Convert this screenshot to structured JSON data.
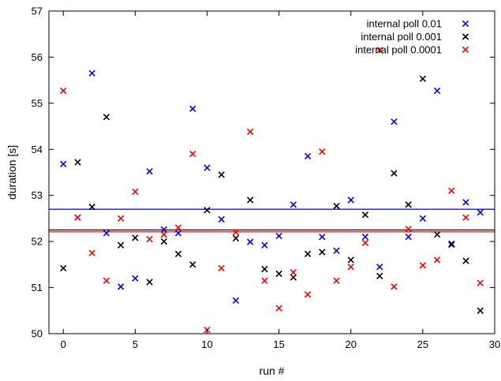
{
  "chart_data": {
    "type": "scatter",
    "title": "",
    "xlabel": "run #",
    "ylabel": "duration [s]",
    "xlim": [
      -1,
      30
    ],
    "ylim": [
      50,
      57
    ],
    "xticks": [
      0,
      5,
      10,
      15,
      20,
      25,
      30
    ],
    "yticks": [
      50,
      51,
      52,
      53,
      54,
      55,
      56,
      57
    ],
    "grid": false,
    "legend_position": "top-right",
    "series": [
      {
        "name": "internal poll 0.01",
        "color": "#0000ff",
        "marker": "x",
        "mean": 52.7,
        "x": [
          0,
          1,
          2,
          3,
          4,
          5,
          6,
          7,
          8,
          9,
          10,
          11,
          12,
          13,
          14,
          15,
          16,
          17,
          18,
          19,
          20,
          21,
          22,
          23,
          24,
          25,
          26,
          27,
          28,
          29
        ],
        "y": [
          53.68,
          52.52,
          55.65,
          52.18,
          51.02,
          51.2,
          53.52,
          52.26,
          52.18,
          54.88,
          53.6,
          52.48,
          50.72,
          51.99,
          51.92,
          52.12,
          52.8,
          53.85,
          52.1,
          51.8,
          52.9,
          52.1,
          51.45,
          54.6,
          52.1,
          52.5,
          55.27,
          51.93,
          52.85,
          52.63
        ]
      },
      {
        "name": "internal poll 0.001",
        "color": "#000000",
        "marker": "x",
        "mean": 52.25,
        "x": [
          0,
          1,
          2,
          3,
          4,
          5,
          6,
          7,
          8,
          9,
          10,
          11,
          12,
          13,
          14,
          15,
          16,
          17,
          18,
          19,
          20,
          21,
          22,
          23,
          24,
          25,
          26,
          27,
          28,
          29
        ],
        "y": [
          51.42,
          53.72,
          52.75,
          54.7,
          51.92,
          52.08,
          51.12,
          52.0,
          51.73,
          51.5,
          52.68,
          53.45,
          52.07,
          52.9,
          51.4,
          51.3,
          51.22,
          51.73,
          51.77,
          52.77,
          51.6,
          52.58,
          51.25,
          53.48,
          52.8,
          55.53,
          52.15,
          51.95,
          51.58,
          50.5
        ]
      },
      {
        "name": "internal poll 0.0001",
        "color": "#ff0000",
        "marker": "x",
        "mean": 52.21,
        "x": [
          0,
          1,
          2,
          3,
          4,
          5,
          6,
          7,
          8,
          9,
          10,
          11,
          12,
          13,
          14,
          15,
          16,
          17,
          18,
          19,
          20,
          21,
          22,
          23,
          24,
          25,
          26,
          27,
          28,
          29
        ],
        "y": [
          55.27,
          52.52,
          51.75,
          51.15,
          52.5,
          53.08,
          52.05,
          52.15,
          52.3,
          53.9,
          50.08,
          51.42,
          52.2,
          54.38,
          51.15,
          50.55,
          51.33,
          50.85,
          53.95,
          51.15,
          51.45,
          51.97,
          56.15,
          51.02,
          52.27,
          51.48,
          51.6,
          53.1,
          52.52,
          51.1
        ]
      }
    ]
  }
}
